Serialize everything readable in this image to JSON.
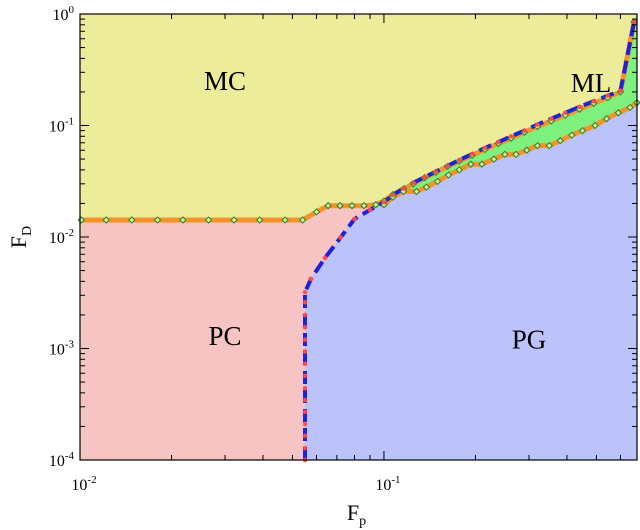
{
  "chart_data": {
    "type": "area",
    "title": "",
    "xlabel": {
      "base": "F",
      "sub": "p"
    },
    "ylabel": {
      "base": "F",
      "sub": "D"
    },
    "x_scale": "log",
    "y_scale": "log",
    "xlim": [
      0.01,
      0.68
    ],
    "ylim": [
      0.0001,
      1.0
    ],
    "x_ticks": [
      {
        "value": 0.01,
        "base": "10",
        "exp": "-2"
      },
      {
        "value": 0.1,
        "base": "10",
        "exp": "-1"
      }
    ],
    "y_ticks": [
      {
        "value": 0.0001,
        "base": "10",
        "exp": "-4"
      },
      {
        "value": 0.001,
        "base": "10",
        "exp": "-3"
      },
      {
        "value": 0.01,
        "base": "10",
        "exp": "-2"
      },
      {
        "value": 0.1,
        "base": "10",
        "exp": "-1"
      },
      {
        "value": 1.0,
        "base": "10",
        "exp": "0"
      }
    ],
    "grid": false,
    "colors": {
      "MC": "#ecec9a",
      "PC": "#f7c4c4",
      "PG": "#bcc3fb",
      "ML": "#7df07d",
      "boundary_orange": "#f5932b",
      "boundary_blue": "#1f22d9",
      "marker_green": "#2f8a2f",
      "marker_red": "#ff4a4a"
    },
    "region_labels": [
      {
        "name": "MC",
        "x": 0.03,
        "y": 0.25
      },
      {
        "name": "PC",
        "x": 0.03,
        "y": 0.0013
      },
      {
        "name": "PG",
        "x": 0.3,
        "y": 0.0012
      },
      {
        "name": "ML",
        "x": 0.48,
        "y": 0.24
      }
    ],
    "series": [
      {
        "role": "MC-PC-ML-upper",
        "style": "orange-line-green-diamonds",
        "x": [
          0.0101,
          0.0122,
          0.0148,
          0.018,
          0.0218,
          0.0265,
          0.0321,
          0.039,
          0.0473,
          0.054,
          0.06,
          0.0655,
          0.0717,
          0.0785,
          0.086,
          0.094,
          0.1,
          0.107,
          0.116,
          0.125,
          0.136,
          0.148,
          0.162,
          0.177,
          0.195,
          0.215,
          0.238,
          0.262,
          0.29,
          0.32,
          0.355,
          0.395,
          0.44,
          0.49,
          0.545,
          0.6,
          0.665
        ],
        "y": [
          0.0142,
          0.0142,
          0.0142,
          0.0142,
          0.0142,
          0.0142,
          0.0142,
          0.0142,
          0.0142,
          0.0142,
          0.0168,
          0.0191,
          0.0191,
          0.0191,
          0.0191,
          0.0195,
          0.021,
          0.024,
          0.027,
          0.03,
          0.034,
          0.038,
          0.043,
          0.048,
          0.054,
          0.061,
          0.069,
          0.077,
          0.087,
          0.098,
          0.11,
          0.124,
          0.14,
          0.158,
          0.178,
          0.2,
          0.85
        ]
      },
      {
        "role": "ML-PG-lower",
        "style": "orange-line-green-diamonds",
        "x": [
          0.1,
          0.107,
          0.116,
          0.128,
          0.138,
          0.15,
          0.163,
          0.177,
          0.193,
          0.21,
          0.23,
          0.25,
          0.272,
          0.295,
          0.32,
          0.35,
          0.38,
          0.415,
          0.45,
          0.495,
          0.54,
          0.59,
          0.645,
          0.68
        ],
        "y": [
          0.0195,
          0.0228,
          0.0256,
          0.0256,
          0.028,
          0.0315,
          0.036,
          0.04,
          0.045,
          0.045,
          0.05,
          0.055,
          0.055,
          0.06,
          0.066,
          0.066,
          0.073,
          0.082,
          0.09,
          0.1,
          0.115,
          0.13,
          0.145,
          0.16
        ]
      },
      {
        "role": "PC-PG-and-MC-ML-boundary",
        "style": "blue-dashed-red-stars",
        "x": [
          0.055,
          0.055,
          0.055,
          0.055,
          0.055,
          0.055,
          0.055,
          0.055,
          0.055,
          0.055,
          0.055,
          0.055,
          0.055,
          0.055,
          0.055,
          0.0575,
          0.064,
          0.072,
          0.08,
          0.09,
          0.1,
          0.107,
          0.116,
          0.125,
          0.136,
          0.148,
          0.162,
          0.177,
          0.195,
          0.215,
          0.238,
          0.262,
          0.29,
          0.32,
          0.355,
          0.395,
          0.44,
          0.49,
          0.545,
          0.6,
          0.665
        ],
        "y": [
          0.0001,
          0.000128,
          0.000165,
          0.00021,
          0.00027,
          0.000345,
          0.00044,
          0.00057,
          0.00073,
          0.00094,
          0.0012,
          0.00155,
          0.002,
          0.0026,
          0.0032,
          0.0042,
          0.0065,
          0.0099,
          0.0145,
          0.0175,
          0.0205,
          0.0238,
          0.0272,
          0.0307,
          0.0343,
          0.0385,
          0.0435,
          0.049,
          0.0555,
          0.063,
          0.071,
          0.08,
          0.09,
          0.102,
          0.115,
          0.13,
          0.147,
          0.165,
          0.185,
          0.205,
          0.85
        ]
      }
    ]
  }
}
